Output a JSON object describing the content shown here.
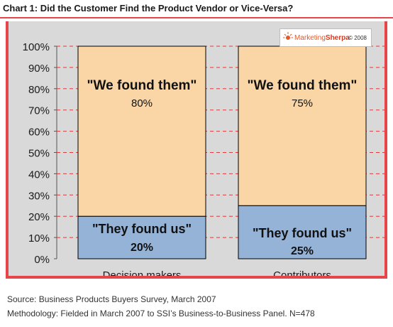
{
  "chart_data": {
    "type": "bar",
    "stacked": true,
    "title": "Chart 1: Did the Customer Find the Product Vendor or Vice-Versa?",
    "categories": [
      "Decision makers",
      "Contributors"
    ],
    "series": [
      {
        "name": "\"They found us\"",
        "values": [
          20,
          25
        ],
        "value_labels": [
          "20%",
          "25%"
        ],
        "color": "#95b3d7"
      },
      {
        "name": "\"We found them\"",
        "values": [
          80,
          75
        ],
        "value_labels": [
          "80%",
          "75%"
        ],
        "color": "#fad5a5"
      }
    ],
    "yticks": [
      "0%",
      "10%",
      "20%",
      "30%",
      "40%",
      "50%",
      "60%",
      "70%",
      "80%",
      "90%",
      "100%"
    ],
    "ylim": [
      0,
      100
    ],
    "gridlines": "dashed red",
    "xlabel": "",
    "ylabel": ""
  },
  "branding": {
    "name_part1": "Marketing",
    "name_part2": "Sherpa",
    "year": "© 2008",
    "icon": "sun-logo-icon"
  },
  "footer": {
    "source": "Source: Business Products Buyers Survey, March 2007",
    "methodology": "Methodology: Fielded in March 2007 to SSI’s Business-to-Business Panel. N=478"
  },
  "colors": {
    "accent": "#e6454a",
    "plot_background": "#d9d9d9",
    "bar_border": "#000000"
  }
}
